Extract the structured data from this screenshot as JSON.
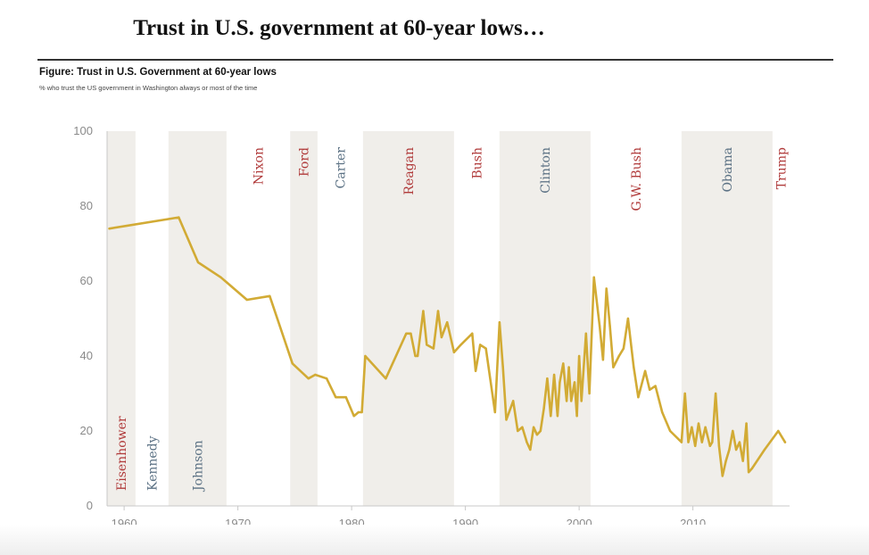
{
  "slide": {
    "title": "Trust in U.S. government at 60-year lows…"
  },
  "figure": {
    "title": "Figure: Trust in U.S. Government at 60-year lows",
    "subtitle": "% who trust the US government in Washington always or most of the time"
  },
  "colors": {
    "line": "#d2ab35",
    "band": "#f0eeea",
    "republican": "#b03a3a",
    "democrat": "#5b7184",
    "axis": "#c8c8c8",
    "tick_text": "#8a8a8a"
  },
  "chart_data": {
    "type": "line",
    "title": "",
    "xlabel": "",
    "ylabel": "",
    "xlim": [
      1958.5,
      2018.5
    ],
    "ylim": [
      0,
      100
    ],
    "x_ticks": [
      1960,
      1970,
      1980,
      1990,
      2000,
      2010
    ],
    "y_ticks": [
      0,
      20,
      40,
      60,
      80,
      100
    ],
    "grid": false,
    "legend": "none",
    "presidents": [
      {
        "name": "Eisenhower",
        "start": 1958.5,
        "end": 1961,
        "party": "R",
        "shaded": true
      },
      {
        "name": "Kennedy",
        "start": 1961,
        "end": 1963.9,
        "party": "D",
        "shaded": false
      },
      {
        "name": "Johnson",
        "start": 1963.9,
        "end": 1969,
        "party": "D",
        "shaded": true
      },
      {
        "name": "Nixon",
        "start": 1969,
        "end": 1974.6,
        "party": "R",
        "shaded": false
      },
      {
        "name": "Ford",
        "start": 1974.6,
        "end": 1977,
        "party": "R",
        "shaded": true
      },
      {
        "name": "Carter",
        "start": 1977,
        "end": 1981,
        "party": "D",
        "shaded": false
      },
      {
        "name": "Reagan",
        "start": 1981,
        "end": 1989,
        "party": "R",
        "shaded": true
      },
      {
        "name": "Bush",
        "start": 1989,
        "end": 1993,
        "party": "R",
        "shaded": false
      },
      {
        "name": "Clinton",
        "start": 1993,
        "end": 2001,
        "party": "D",
        "shaded": true
      },
      {
        "name": "G.W. Bush",
        "start": 2001,
        "end": 2009,
        "party": "R",
        "shaded": false
      },
      {
        "name": "Obama",
        "start": 2009,
        "end": 2017,
        "party": "D",
        "shaded": true
      },
      {
        "name": "Trump",
        "start": 2017,
        "end": 2018.5,
        "party": "R",
        "shaded": false
      }
    ],
    "series": [
      {
        "x": [
          1958.7,
          1964.8,
          1966.5,
          1968.5,
          1970.8,
          1972.8,
          1974.8,
          1976.2,
          1976.8,
          1977.8,
          1978.6,
          1979.5,
          1980.2,
          1980.6,
          1980.9,
          1981.2,
          1983.0,
          1984.8,
          1985.2,
          1985.6,
          1985.8,
          1986.3,
          1986.6,
          1987.2,
          1987.6,
          1987.9,
          1988.4,
          1989.0,
          1989.6,
          1990.6,
          1990.9,
          1991.3,
          1991.8,
          1992.6,
          1993.0,
          1993.3,
          1993.6,
          1994.2,
          1994.6,
          1995.0,
          1995.4,
          1995.7,
          1996.0,
          1996.3,
          1996.6,
          1996.9,
          1997.2,
          1997.5,
          1997.8,
          1998.1,
          1998.3,
          1998.6,
          1998.9,
          1999.1,
          1999.3,
          1999.6,
          1999.8,
          2000.0,
          2000.2,
          2000.6,
          2000.9,
          2001.3,
          2001.8,
          2002.1,
          2002.4,
          2002.7,
          2003.0,
          2003.5,
          2003.9,
          2004.3,
          2004.8,
          2005.2,
          2005.8,
          2006.2,
          2006.7,
          2007.3,
          2008.0,
          2009.0,
          2009.3,
          2009.6,
          2009.9,
          2010.2,
          2010.5,
          2010.8,
          2011.1,
          2011.5,
          2011.7,
          2012.0,
          2012.3,
          2012.6,
          2012.9,
          2013.2,
          2013.5,
          2013.8,
          2014.1,
          2014.4,
          2014.7,
          2014.9,
          2015.2,
          2016.3,
          2017.5,
          2018.1
        ],
        "values": [
          74,
          77,
          65,
          61,
          55,
          56,
          38,
          34,
          35,
          34,
          29,
          29,
          24,
          25,
          25,
          40,
          34,
          46,
          46,
          40,
          40,
          52,
          43,
          42,
          52,
          45,
          49,
          41,
          43,
          46,
          36,
          43,
          42,
          25,
          49,
          37,
          23,
          28,
          20,
          21,
          17,
          15,
          21,
          19,
          20,
          26,
          34,
          24,
          35,
          24,
          33,
          38,
          28,
          37,
          28,
          33,
          24,
          40,
          28,
          46,
          30,
          61,
          48,
          39,
          58,
          48,
          37,
          40,
          42,
          50,
          37,
          29,
          36,
          31,
          32,
          25,
          20,
          17,
          30,
          17,
          21,
          16,
          22,
          17,
          21,
          16,
          17,
          30,
          16,
          8,
          12,
          15,
          20,
          15,
          17,
          12,
          22,
          9,
          10,
          15,
          20,
          17
        ]
      }
    ]
  }
}
